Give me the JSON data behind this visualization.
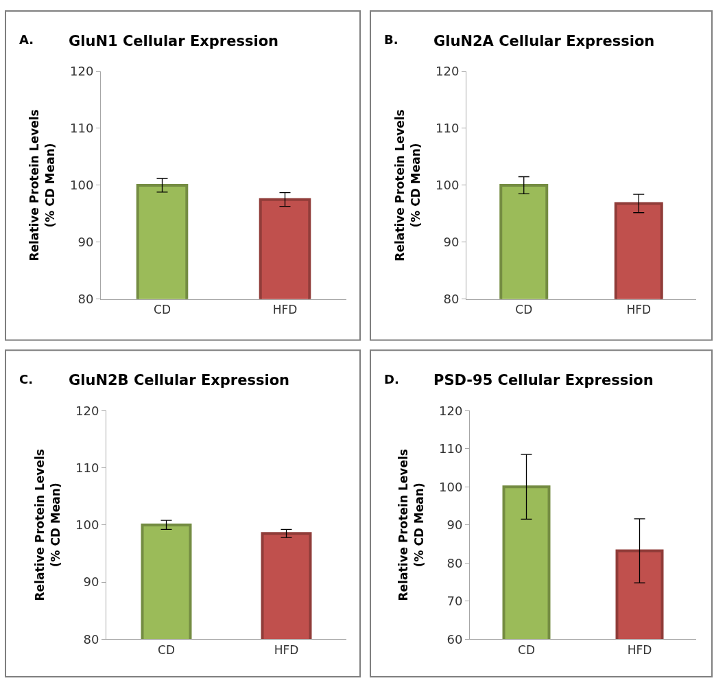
{
  "chart_data": [
    {
      "type": "bar",
      "title": "GluN1 Cellular Expression",
      "annotations": [
        "A."
      ],
      "ylabel": "Relative Protein Levels\n(% CD Mean)",
      "categories": [
        "CD",
        "HFD"
      ],
      "values": [
        100,
        97.5
      ],
      "errors": [
        1.2,
        1.2
      ],
      "colors": [
        "#9bbb59",
        "#c0504d"
      ],
      "ylim": [
        80,
        120
      ],
      "yticks": [
        80,
        90,
        100,
        110,
        120
      ]
    },
    {
      "type": "bar",
      "title": "GluN2A Cellular Expression",
      "annotations": [
        "B."
      ],
      "ylabel": "Relative Protein Levels\n(% CD Mean)",
      "categories": [
        "CD",
        "HFD"
      ],
      "values": [
        100,
        96.8
      ],
      "errors": [
        1.5,
        1.6
      ],
      "colors": [
        "#9bbb59",
        "#c0504d"
      ],
      "ylim": [
        80,
        120
      ],
      "yticks": [
        80,
        90,
        100,
        110,
        120
      ]
    },
    {
      "type": "bar",
      "title": "GluN2B Cellular Expression",
      "annotations": [
        "C."
      ],
      "ylabel": "Relative Protein Levels\n(% CD Mean)",
      "categories": [
        "CD",
        "HFD"
      ],
      "values": [
        100,
        98.5
      ],
      "errors": [
        0.8,
        0.7
      ],
      "colors": [
        "#9bbb59",
        "#c0504d"
      ],
      "ylim": [
        80,
        120
      ],
      "yticks": [
        80,
        90,
        100,
        110,
        120
      ]
    },
    {
      "type": "bar",
      "title": "PSD-95 Cellular Expression",
      "annotations": [
        "D."
      ],
      "ylabel": "Relative Protein Levels\n(% CD Mean)",
      "categories": [
        "CD",
        "HFD"
      ],
      "values": [
        100,
        83.2
      ],
      "errors": [
        8.5,
        8.4
      ],
      "colors": [
        "#9bbb59",
        "#c0504d"
      ],
      "ylim": [
        60,
        120
      ],
      "yticks": [
        60,
        70,
        80,
        90,
        100,
        110,
        120
      ]
    }
  ]
}
